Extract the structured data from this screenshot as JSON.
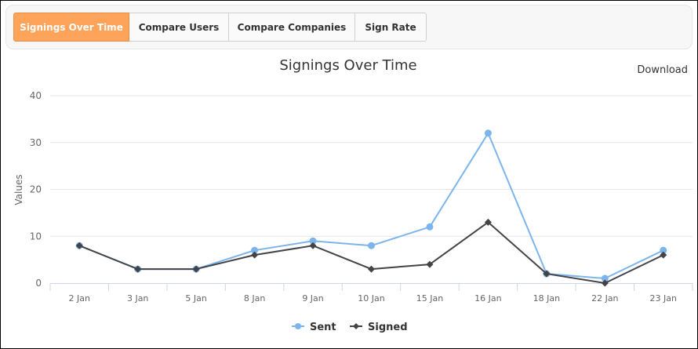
{
  "tabs": [
    {
      "label": "Signings Over Time",
      "active": true
    },
    {
      "label": "Compare Users",
      "active": false
    },
    {
      "label": "Compare Companies",
      "active": false
    },
    {
      "label": "Sign Rate",
      "active": false
    }
  ],
  "download_label": "Download",
  "colors": {
    "accent": "#fea35a",
    "sent": "#7cb5ec",
    "signed": "#434348"
  },
  "chart_data": {
    "type": "line",
    "title": "Signings Over Time",
    "xlabel": "",
    "ylabel": "Values",
    "ylim": [
      0,
      40
    ],
    "yticks": [
      0,
      10,
      20,
      30,
      40
    ],
    "grid": true,
    "legend_position": "bottom",
    "categories": [
      "2 Jan",
      "3 Jan",
      "5 Jan",
      "8 Jan",
      "9 Jan",
      "10 Jan",
      "15 Jan",
      "16 Jan",
      "18 Jan",
      "22 Jan",
      "23 Jan"
    ],
    "series": [
      {
        "name": "Sent",
        "color": "#7cb5ec",
        "marker": "circle",
        "values": [
          8,
          3,
          3,
          7,
          9,
          8,
          12,
          32,
          2,
          1,
          7
        ]
      },
      {
        "name": "Signed",
        "color": "#434348",
        "marker": "diamond",
        "values": [
          8,
          3,
          3,
          6,
          8,
          3,
          4,
          13,
          2,
          0,
          6
        ]
      }
    ]
  }
}
